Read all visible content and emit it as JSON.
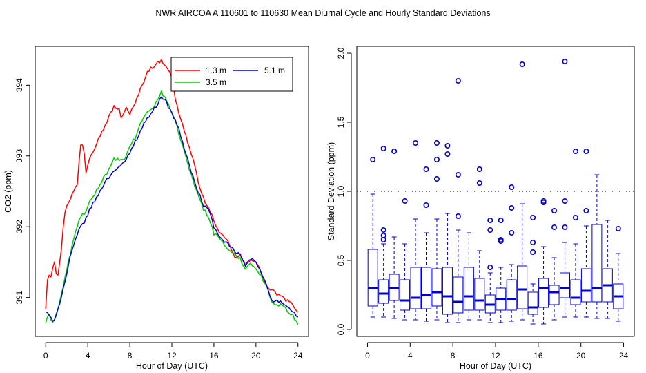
{
  "figure": {
    "title": "NWR   AIRCOA A   110601 to 110630   Mean Diurnal Cycle and Hourly Standard Deviations"
  },
  "chart_data": [
    {
      "type": "line",
      "xlabel": "Hour of Day (UTC)",
      "ylabel": "CO2 (ppm)",
      "xlim": [
        -1.0,
        25.0
      ],
      "ylim": [
        390.45,
        394.55
      ],
      "xticks": [
        0,
        4,
        8,
        12,
        16,
        20,
        24
      ],
      "yticks": [
        391,
        392,
        393,
        394
      ],
      "legend_position": "top-right",
      "series": [
        {
          "name": "1.3 m",
          "color": "#ff0000",
          "knots_x": [
            0,
            0.2,
            0.5,
            0.8,
            1.1,
            1.4,
            1.8,
            2.0,
            2.5,
            3.0,
            3.3,
            3.6,
            3.8,
            4.2,
            4.6,
            5.0,
            5.4,
            6.0,
            6.5,
            7.0,
            7.2,
            7.6,
            8.0,
            8.4,
            8.9,
            9.3,
            9.7,
            10.1,
            10.5,
            11.0,
            11.3,
            11.6,
            12.0,
            12.4,
            13.0,
            13.5,
            14.0,
            14.5,
            15.0,
            15.5,
            16.0,
            16.5,
            17.0,
            17.5,
            18.0,
            18.5,
            19.0,
            19.5,
            20.0,
            20.5,
            21.0,
            21.5,
            22.0,
            22.5,
            23.0,
            23.5,
            24.0
          ],
          "knots_y": [
            390.85,
            391.35,
            391.3,
            391.55,
            391.25,
            391.55,
            392.2,
            392.3,
            392.45,
            392.6,
            393.15,
            393.18,
            392.75,
            393.0,
            393.1,
            393.25,
            393.35,
            393.55,
            393.7,
            393.65,
            393.5,
            393.7,
            393.6,
            393.7,
            393.9,
            394.05,
            394.2,
            394.25,
            394.3,
            394.35,
            394.3,
            394.25,
            394.1,
            393.75,
            393.45,
            393.2,
            392.95,
            392.65,
            392.4,
            392.25,
            392.1,
            391.9,
            391.85,
            391.75,
            391.55,
            391.6,
            391.45,
            391.55,
            391.5,
            391.35,
            391.15,
            391.1,
            391.05,
            391.0,
            390.95,
            390.9,
            390.8
          ]
        },
        {
          "name": "3.5 m",
          "color": "#00cc00",
          "knots_x": [
            0,
            0.3,
            0.7,
            1.2,
            1.8,
            2.3,
            2.8,
            3.3,
            3.8,
            4.2,
            4.6,
            5.0,
            5.5,
            6.0,
            6.5,
            7.0,
            7.5,
            8.0,
            8.5,
            9.0,
            9.5,
            10.0,
            10.5,
            11.0,
            11.5,
            12.0,
            12.5,
            13.0,
            13.5,
            14.0,
            14.5,
            15.0,
            15.5,
            16.0,
            16.5,
            17.0,
            17.5,
            18.0,
            18.5,
            19.0,
            19.5,
            20.0,
            20.5,
            21.0,
            21.5,
            22.0,
            22.5,
            23.0,
            23.5,
            24.0
          ],
          "knots_y": [
            390.65,
            390.75,
            390.65,
            390.85,
            391.25,
            391.6,
            391.9,
            392.15,
            392.2,
            392.35,
            392.45,
            392.55,
            392.7,
            392.8,
            392.95,
            392.95,
            392.93,
            393.15,
            393.25,
            393.45,
            393.6,
            393.65,
            393.75,
            393.9,
            393.8,
            393.6,
            393.4,
            393.15,
            392.9,
            392.65,
            392.45,
            392.25,
            392.15,
            391.9,
            391.85,
            391.75,
            391.65,
            391.6,
            391.55,
            391.4,
            391.5,
            391.4,
            391.3,
            391.15,
            390.95,
            390.9,
            390.9,
            390.8,
            390.75,
            390.62
          ]
        },
        {
          "name": "5.1 m",
          "color": "#0000cc",
          "knots_x": [
            0,
            0.3,
            0.7,
            1.2,
            1.8,
            2.3,
            2.8,
            3.3,
            3.8,
            4.2,
            4.6,
            5.0,
            5.5,
            6.0,
            6.5,
            7.0,
            7.5,
            8.0,
            8.5,
            9.0,
            9.5,
            10.0,
            10.5,
            11.0,
            11.5,
            12.0,
            12.5,
            13.0,
            13.5,
            14.0,
            14.5,
            15.0,
            15.5,
            16.0,
            16.5,
            17.0,
            17.5,
            18.0,
            18.5,
            19.0,
            19.5,
            20.0,
            20.5,
            21.0,
            21.5,
            22.0,
            22.5,
            23.0,
            23.5,
            24.0
          ],
          "knots_y": [
            390.8,
            390.75,
            390.65,
            390.85,
            391.2,
            391.55,
            391.8,
            392.0,
            392.1,
            392.25,
            392.35,
            392.45,
            392.6,
            392.7,
            392.8,
            392.85,
            392.9,
            393.05,
            393.2,
            393.35,
            393.5,
            393.6,
            393.7,
            393.85,
            393.75,
            393.6,
            393.45,
            393.2,
            392.95,
            392.7,
            392.5,
            392.3,
            392.25,
            392.0,
            391.85,
            391.8,
            391.72,
            391.65,
            391.6,
            391.45,
            391.55,
            391.5,
            391.35,
            391.2,
            390.95,
            390.95,
            390.92,
            390.85,
            390.8,
            390.72
          ]
        }
      ]
    },
    {
      "type": "box",
      "xlabel": "Hour of Day (UTC)",
      "ylabel": "Standard Deviation (ppm)",
      "xlim": [
        -1.0,
        25.0
      ],
      "ylim": [
        -0.05,
        2.05
      ],
      "xticks": [
        0,
        4,
        8,
        12,
        16,
        20,
        24
      ],
      "yticks": [
        0.0,
        0.5,
        1.0,
        1.5,
        2.0
      ],
      "reference_line": 1.0,
      "box_color": "#0000cc",
      "boxes": [
        {
          "hour": 0.5,
          "q1": 0.17,
          "median": 0.3,
          "q3": 0.58,
          "lower": 0.09,
          "upper": 0.98,
          "outliers": [
            1.23
          ]
        },
        {
          "hour": 1.5,
          "q1": 0.19,
          "median": 0.26,
          "q3": 0.36,
          "lower": 0.09,
          "upper": 0.62,
          "outliers": [
            0.65,
            0.68,
            0.72,
            1.31
          ]
        },
        {
          "hour": 2.5,
          "q1": 0.21,
          "median": 0.3,
          "q3": 0.4,
          "lower": 0.08,
          "upper": 0.67,
          "outliers": [
            1.29
          ]
        },
        {
          "hour": 3.5,
          "q1": 0.14,
          "median": 0.21,
          "q3": 0.36,
          "lower": 0.07,
          "upper": 0.62,
          "outliers": [
            0.93
          ]
        },
        {
          "hour": 4.5,
          "q1": 0.15,
          "median": 0.23,
          "q3": 0.45,
          "lower": 0.07,
          "upper": 0.8,
          "outliers": [
            1.35
          ]
        },
        {
          "hour": 5.5,
          "q1": 0.15,
          "median": 0.25,
          "q3": 0.45,
          "lower": 0.06,
          "upper": 0.7,
          "outliers": [
            0.9,
            1.16
          ]
        },
        {
          "hour": 6.5,
          "q1": 0.17,
          "median": 0.27,
          "q3": 0.44,
          "lower": 0.07,
          "upper": 0.8,
          "outliers": [
            1.09,
            1.23,
            1.35
          ]
        },
        {
          "hour": 7.5,
          "q1": 0.11,
          "median": 0.24,
          "q3": 0.45,
          "lower": 0.05,
          "upper": 0.84,
          "outliers": [
            1.27,
            1.33
          ]
        },
        {
          "hour": 8.5,
          "q1": 0.12,
          "median": 0.2,
          "q3": 0.38,
          "lower": 0.05,
          "upper": 0.72,
          "outliers": [
            0.82,
            1.12,
            1.8
          ]
        },
        {
          "hour": 9.5,
          "q1": 0.14,
          "median": 0.24,
          "q3": 0.45,
          "lower": 0.07,
          "upper": 0.7,
          "outliers": []
        },
        {
          "hour": 10.5,
          "q1": 0.14,
          "median": 0.21,
          "q3": 0.37,
          "lower": 0.07,
          "upper": 0.57,
          "outliers": [
            1.06,
            1.16
          ]
        },
        {
          "hour": 11.5,
          "q1": 0.12,
          "median": 0.18,
          "q3": 0.25,
          "lower": 0.05,
          "upper": 0.41,
          "outliers": [
            0.45,
            0.72,
            0.79
          ]
        },
        {
          "hour": 12.5,
          "q1": 0.14,
          "median": 0.22,
          "q3": 0.3,
          "lower": 0.05,
          "upper": 0.45,
          "outliers": [
            0.64,
            0.65,
            0.79
          ]
        },
        {
          "hour": 13.5,
          "q1": 0.14,
          "median": 0.22,
          "q3": 0.36,
          "lower": 0.06,
          "upper": 0.47,
          "outliers": [
            0.7,
            0.88,
            1.03
          ]
        },
        {
          "hour": 14.5,
          "q1": 0.15,
          "median": 0.29,
          "q3": 0.46,
          "lower": 0.07,
          "upper": 0.91,
          "outliers": [
            1.92
          ]
        },
        {
          "hour": 15.5,
          "q1": 0.11,
          "median": 0.16,
          "q3": 0.27,
          "lower": 0.04,
          "upper": 0.33,
          "outliers": [
            0.56,
            0.63,
            0.81
          ]
        },
        {
          "hour": 16.5,
          "q1": 0.16,
          "median": 0.3,
          "q3": 0.37,
          "lower": 0.04,
          "upper": 0.6,
          "outliers": [
            0.92,
            0.93
          ]
        },
        {
          "hour": 17.5,
          "q1": 0.18,
          "median": 0.27,
          "q3": 0.32,
          "lower": 0.07,
          "upper": 0.52,
          "outliers": [
            0.74,
            0.86
          ]
        },
        {
          "hour": 18.5,
          "q1": 0.23,
          "median": 0.3,
          "q3": 0.41,
          "lower": 0.09,
          "upper": 0.63,
          "outliers": [
            0.74,
            0.93,
            1.94
          ]
        },
        {
          "hour": 19.5,
          "q1": 0.18,
          "median": 0.23,
          "q3": 0.36,
          "lower": 0.09,
          "upper": 0.62,
          "outliers": [
            0.81,
            1.29
          ]
        },
        {
          "hour": 20.5,
          "q1": 0.2,
          "median": 0.28,
          "q3": 0.44,
          "lower": 0.09,
          "upper": 0.75,
          "outliers": [
            0.86,
            1.29
          ]
        },
        {
          "hour": 21.5,
          "q1": 0.2,
          "median": 0.3,
          "q3": 0.76,
          "lower": 0.08,
          "upper": 1.12,
          "outliers": []
        },
        {
          "hour": 22.5,
          "q1": 0.2,
          "median": 0.32,
          "q3": 0.44,
          "lower": 0.08,
          "upper": 0.79,
          "outliers": []
        },
        {
          "hour": 23.5,
          "q1": 0.15,
          "median": 0.24,
          "q3": 0.33,
          "lower": 0.06,
          "upper": 0.55,
          "outliers": [
            0.73
          ]
        }
      ]
    }
  ]
}
